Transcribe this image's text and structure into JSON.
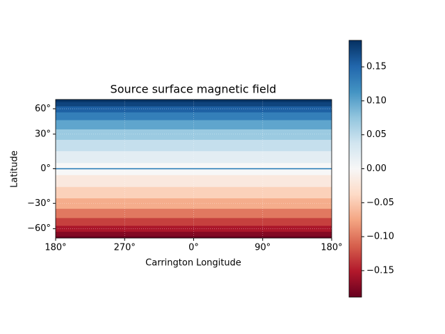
{
  "chart_data": {
    "type": "heatmap",
    "title": "Source surface magnetic field",
    "xlabel": "Carrington Longitude",
    "ylabel": "Latitude",
    "y": [
      -90,
      -80,
      -70,
      -60,
      -50,
      -40,
      -30,
      -20,
      -10,
      0,
      10,
      20,
      30,
      40,
      50,
      60,
      70,
      80,
      90
    ],
    "values": [
      -0.189,
      -0.185,
      -0.175,
      -0.155,
      -0.13,
      -0.1,
      -0.07,
      -0.045,
      -0.02,
      0,
      0.02,
      0.045,
      0.07,
      0.1,
      0.13,
      0.155,
      0.175,
      0.185,
      0.189
    ],
    "colormap": "RdBu",
    "clim": [
      -0.189,
      0.189
    ],
    "colorbar_ticks": [
      {
        "value": -0.15,
        "label": "−0.15"
      },
      {
        "value": -0.1,
        "label": "−0.10"
      },
      {
        "value": -0.05,
        "label": "−0.05"
      },
      {
        "value": 0,
        "label": "0.00"
      },
      {
        "value": 0.05,
        "label": "0.05"
      },
      {
        "value": 0.1,
        "label": "0.10"
      },
      {
        "value": 0.15,
        "label": "0.15"
      }
    ],
    "xlim": [
      180,
      540
    ],
    "xticks": [
      {
        "value": 180,
        "label": "180°"
      },
      {
        "value": 270,
        "label": "270°"
      },
      {
        "value": 360,
        "label": "0°"
      },
      {
        "value": 450,
        "label": "90°"
      },
      {
        "value": 540,
        "label": "180°"
      }
    ],
    "ylim": [
      -90,
      90
    ],
    "yscale": "sine",
    "yticks": [
      {
        "value": -60,
        "label": "−60°"
      },
      {
        "value": -30,
        "label": "−30°"
      },
      {
        "value": 0,
        "label": "0°"
      },
      {
        "value": 30,
        "label": "30°"
      },
      {
        "value": 60,
        "label": "60°"
      }
    ],
    "grid": true,
    "contour": {
      "level": 0,
      "color": "#1f77b4"
    }
  }
}
